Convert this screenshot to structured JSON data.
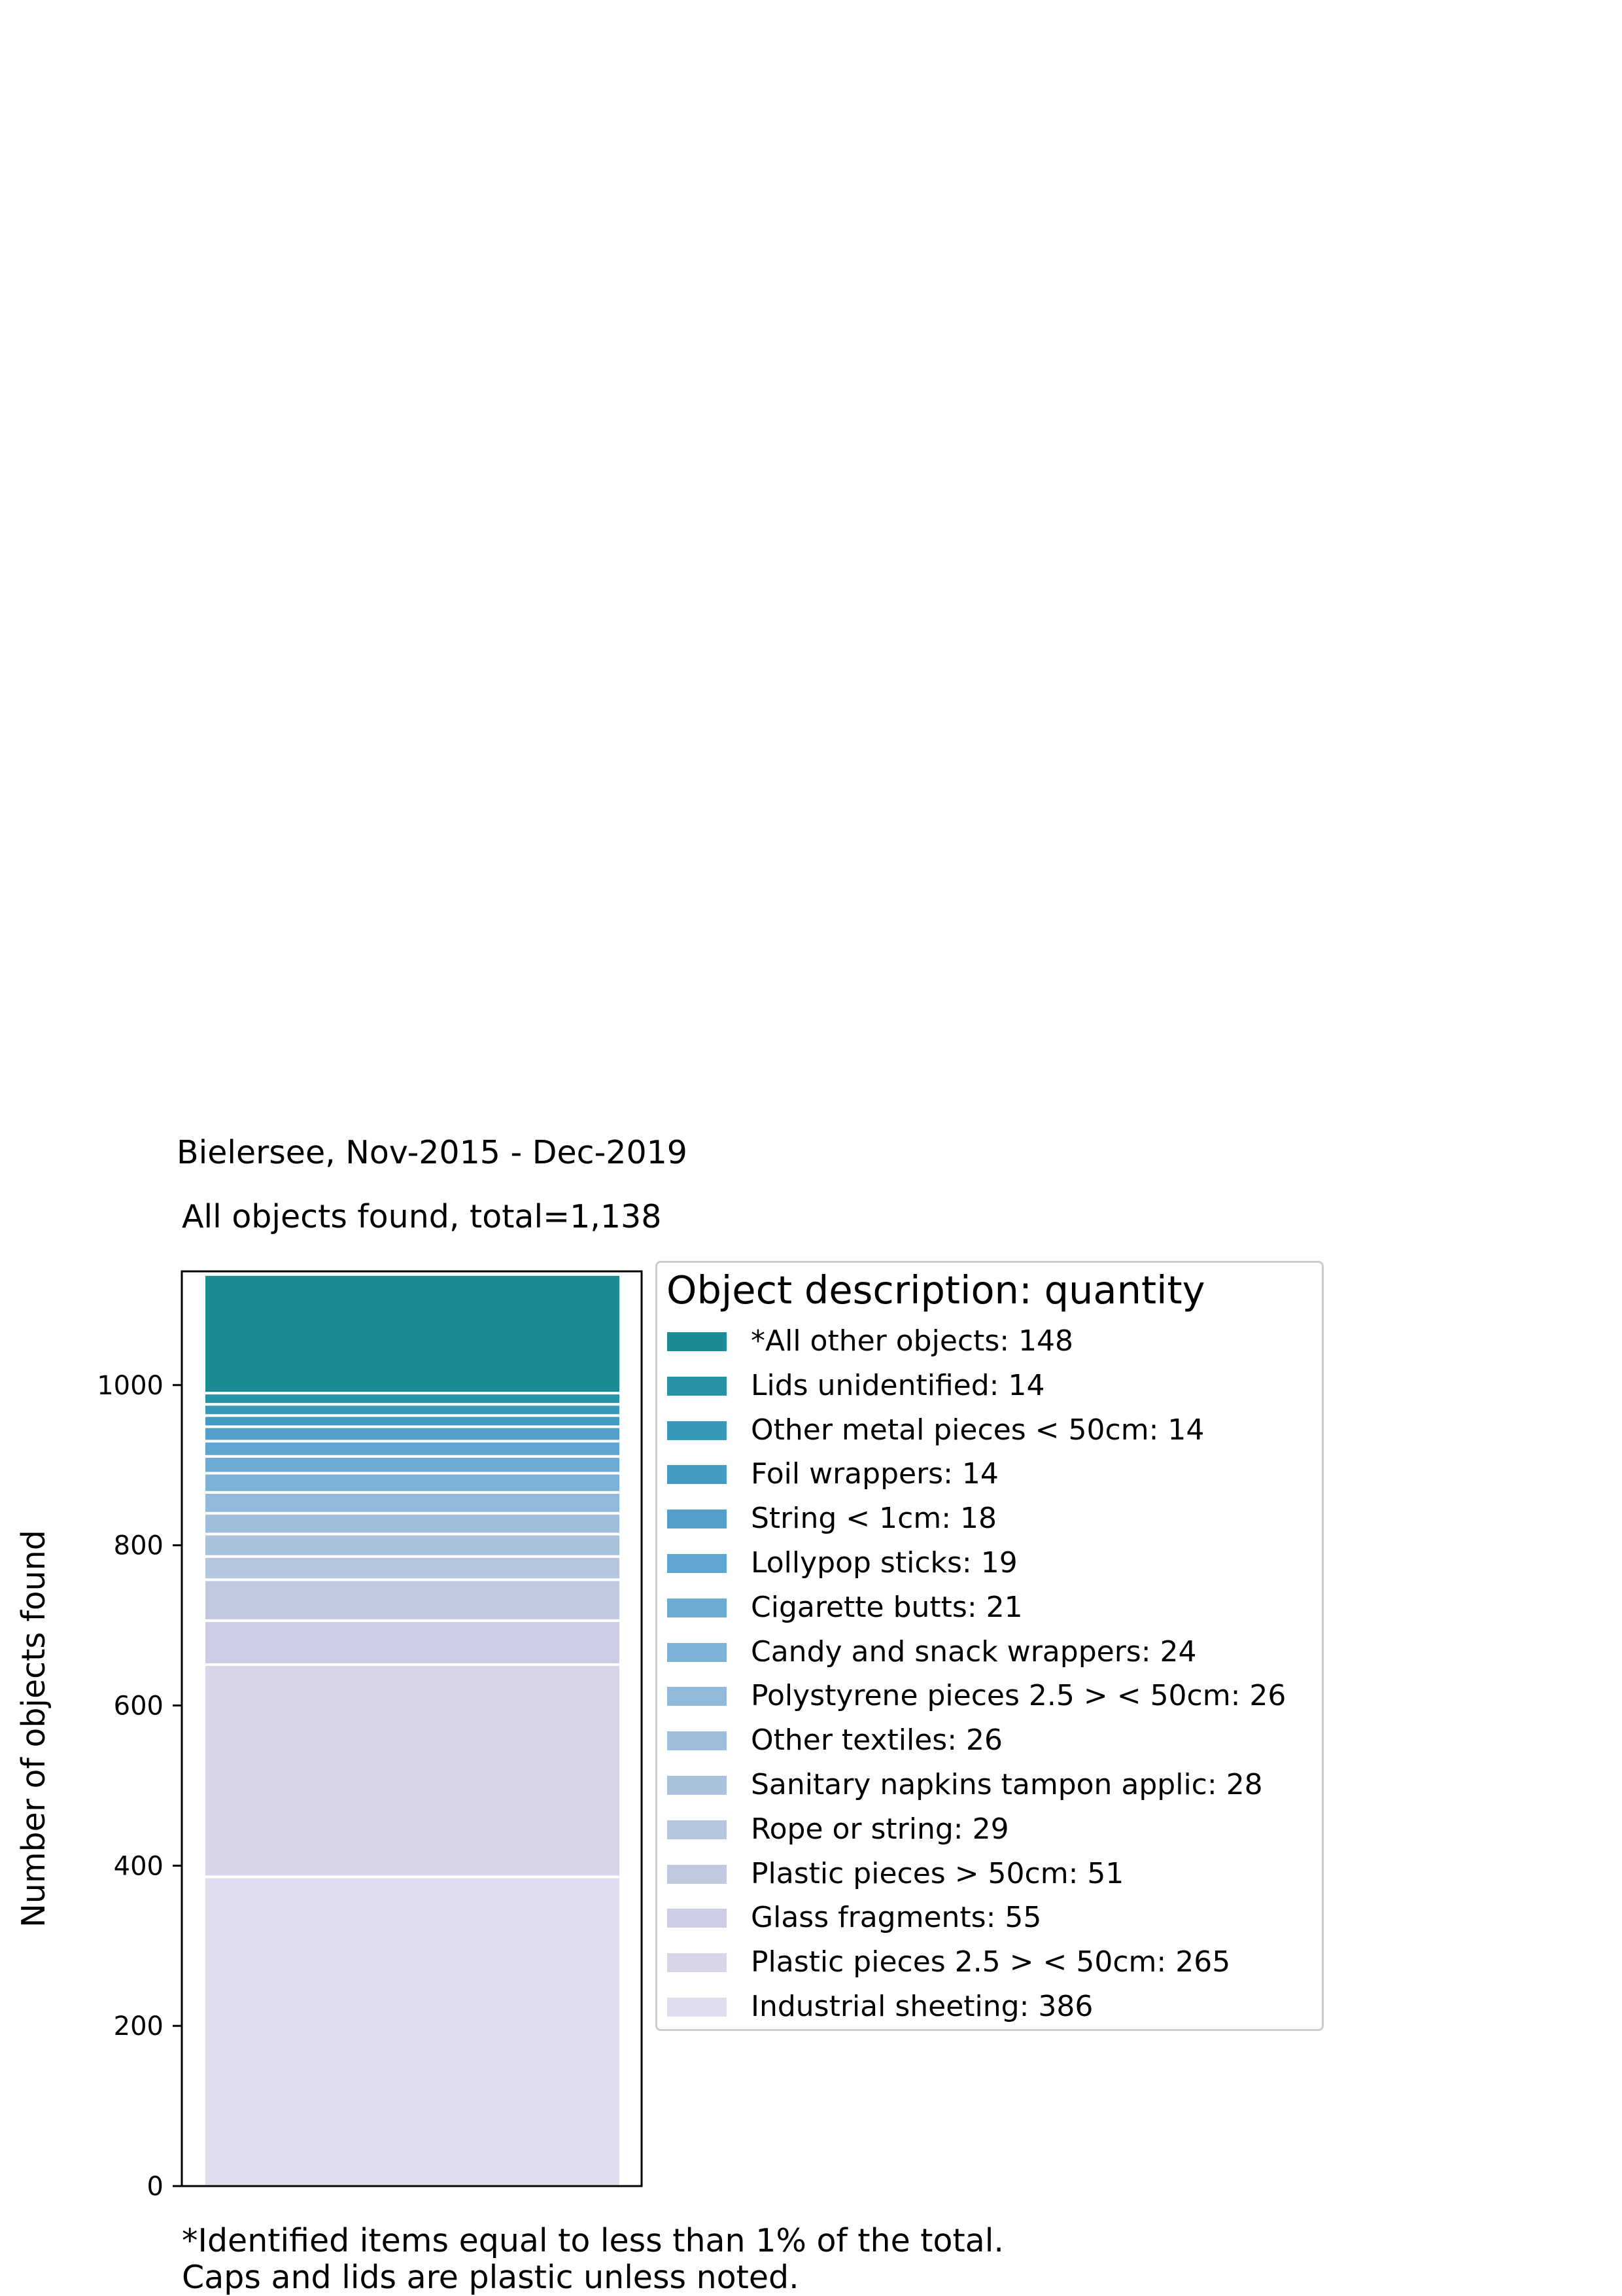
{
  "title": "Bielersee, Nov-2015 - Dec-2019",
  "subtitle": "All objects found,  total=1,138",
  "footnote": [
    "*Identified items equal to less than 1% of the total.",
    "Caps and lids are plastic unless noted."
  ],
  "chart_data": {
    "type": "bar",
    "stacked": true,
    "ylabel": "Number of objects found",
    "ylim": [
      0,
      1142
    ],
    "yticks": [
      "0",
      "200",
      "400",
      "600",
      "800",
      "1000"
    ],
    "grid": false,
    "legend_title": "Object description: quantity",
    "legend_placement": "right",
    "series": [
      {
        "name": "Industrial sheeting",
        "value": 386,
        "label": "Industrial sheeting: 386",
        "color": "#dedded"
      },
      {
        "name": "Plastic pieces 2.5 > < 50cm",
        "value": 265,
        "label": "Plastic pieces 2.5 > < 50cm: 265",
        "color": "#d7d6e9"
      },
      {
        "name": "Glass fragments",
        "value": 55,
        "label": "Glass fragments: 55",
        "color": "#cccde5"
      },
      {
        "name": "Plastic pieces > 50cm",
        "value": 51,
        "label": "Plastic pieces > 50cm: 51",
        "color": "#c1c9e0"
      },
      {
        "name": "Rope or string",
        "value": 29,
        "label": "Rope or string: 29",
        "color": "#b7c6df"
      },
      {
        "name": "Sanitary napkins tampon applic",
        "value": 28,
        "label": "Sanitary napkins tampon applic: 28",
        "color": "#abc2dd"
      },
      {
        "name": "Other textiles",
        "value": 26,
        "label": "Other textiles: 26",
        "color": "#9fbedc"
      },
      {
        "name": "Polystyrene pieces 2.5 > < 50cm",
        "value": 26,
        "label": "Polystyrene pieces 2.5 > < 50cm: 26",
        "color": "#90b9da"
      },
      {
        "name": "Candy and snack wrappers",
        "value": 24,
        "label": "Candy and snack wrappers: 24",
        "color": "#7eb1d6"
      },
      {
        "name": "Cigarette butts",
        "value": 21,
        "label": "Cigarette butts: 21",
        "color": "#6dabd3"
      },
      {
        "name": "Lollypop sticks",
        "value": 19,
        "label": "Lollypop sticks: 19",
        "color": "#5ea5cf"
      },
      {
        "name": "String < 1cm",
        "value": 18,
        "label": "String < 1cm: 18",
        "color": "#529fcb"
      },
      {
        "name": "Foil wrappers",
        "value": 14,
        "label": "Foil wrappers: 14",
        "color": "#469bc4"
      },
      {
        "name": "Other metal pieces < 50cm",
        "value": 14,
        "label": "Other metal pieces < 50cm: 14",
        "color": "#3998b8"
      },
      {
        "name": "Lids unidentified",
        "value": 14,
        "label": "Lids unidentified: 14",
        "color": "#2793a4"
      },
      {
        "name": "*All other objects",
        "value": 148,
        "label": "*All other objects: 148",
        "color": "#1c8c94"
      }
    ]
  }
}
